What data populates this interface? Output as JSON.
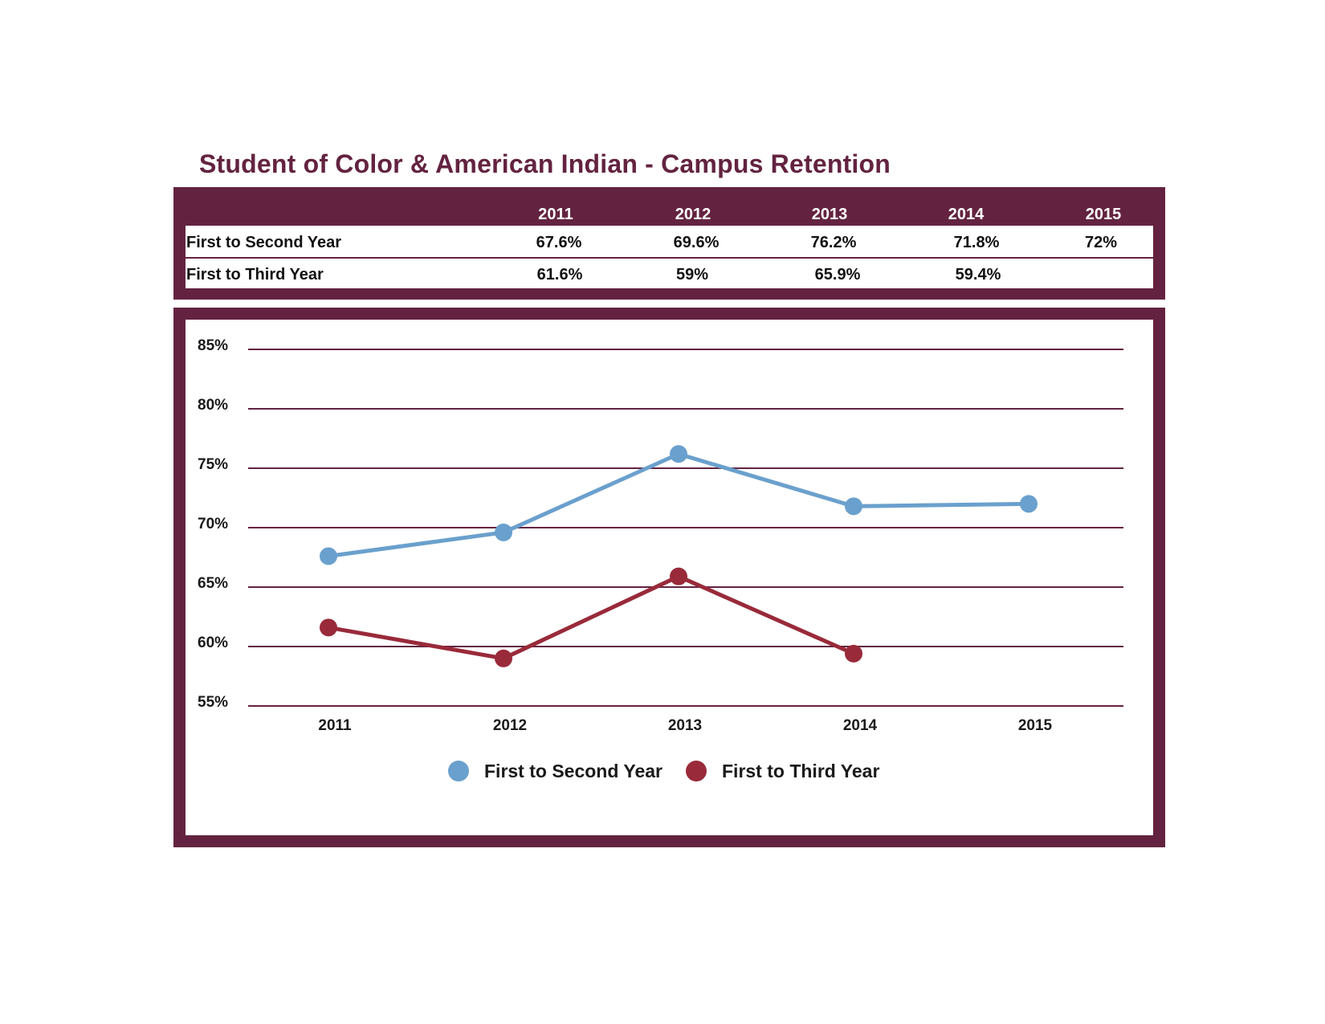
{
  "title": "Student of Color & American Indian - Campus Retention",
  "colors": {
    "frame": "#632340",
    "series_1": "#6aa0cd",
    "series_2": "#992a3a",
    "grid": "#632340"
  },
  "table": {
    "columns": [
      "2011",
      "2012",
      "2013",
      "2014",
      "2015"
    ],
    "rows": [
      {
        "label": "First to Second Year",
        "values": [
          "67.6%",
          "69.6%",
          "76.2%",
          "71.8%",
          "72%"
        ]
      },
      {
        "label": "First to Third Year",
        "values": [
          "61.6%",
          "59%",
          "65.9%",
          "59.4%",
          ""
        ]
      }
    ]
  },
  "chart_data": {
    "type": "line",
    "title": "",
    "xlabel": "",
    "ylabel": "",
    "x": [
      "2011",
      "2012",
      "2013",
      "2014",
      "2015"
    ],
    "y_ticks": [
      "55%",
      "60%",
      "65%",
      "70%",
      "75%",
      "80%",
      "85%"
    ],
    "ylim": [
      55,
      85
    ],
    "grid": true,
    "legend_position": "bottom",
    "series": [
      {
        "name": "First to Second Year",
        "values": [
          67.6,
          69.6,
          76.2,
          71.8,
          72
        ],
        "color": "#6aa0cd"
      },
      {
        "name": "First to Third Year",
        "values": [
          61.6,
          59,
          65.9,
          59.4,
          null
        ],
        "color": "#992a3a"
      }
    ]
  }
}
